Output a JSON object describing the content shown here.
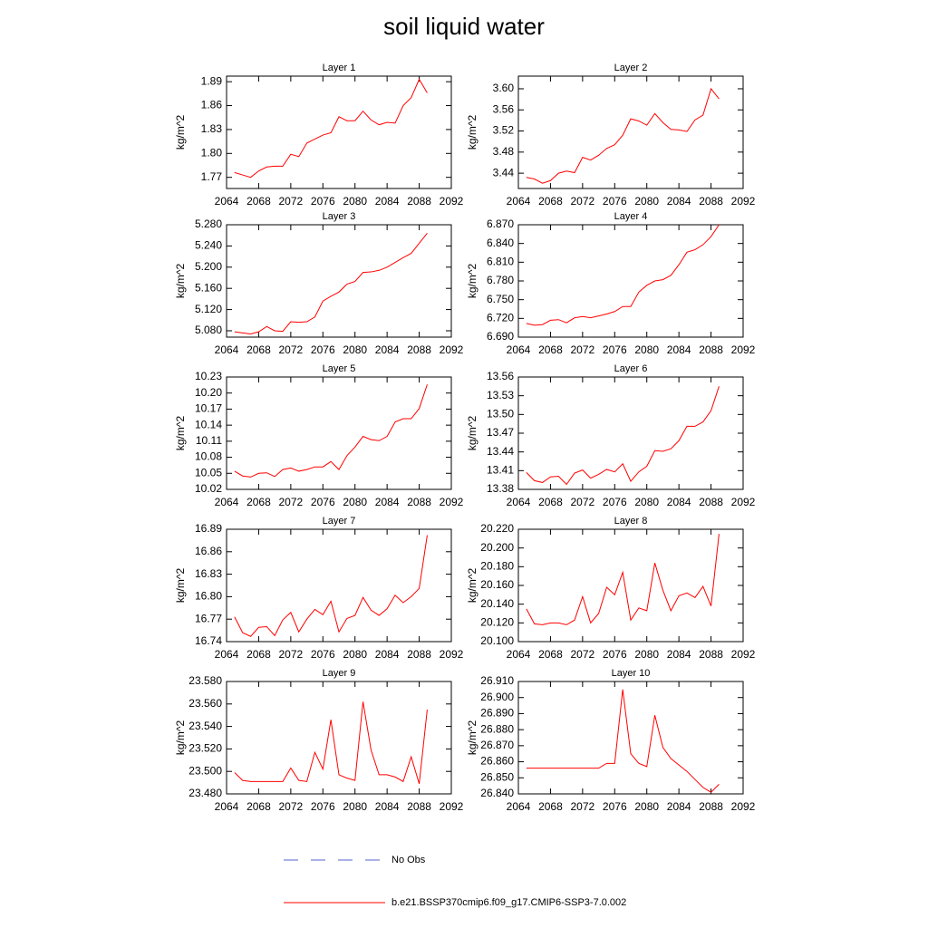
{
  "figure": {
    "title": "soil liquid water",
    "legend": [
      {
        "name": "No Obs",
        "color": "#5566cc",
        "dash": true
      },
      {
        "name": "b.e21.BSSP370cmip6.f09_g17.CMIP6-SSP3-7.0.002",
        "color": "#ff0000",
        "dash": false
      }
    ]
  },
  "chart_data": [
    {
      "type": "line",
      "title": "Layer 1",
      "ylabel": "kg/m^2",
      "color": "#ff0000",
      "x": [
        2065,
        2066,
        2067,
        2068,
        2069,
        2070,
        2071,
        2072,
        2073,
        2074,
        2075,
        2076,
        2077,
        2078,
        2079,
        2080,
        2081,
        2082,
        2083,
        2084,
        2085,
        2086,
        2087,
        2088,
        2089
      ],
      "values": [
        1.776,
        1.773,
        1.77,
        1.778,
        1.783,
        1.784,
        1.784,
        1.799,
        1.796,
        1.813,
        1.818,
        1.823,
        1.826,
        1.846,
        1.841,
        1.841,
        1.853,
        1.842,
        1.836,
        1.839,
        1.838,
        1.86,
        1.87,
        1.893,
        1.876
      ],
      "xlim": [
        2064,
        2092
      ],
      "xticks": [
        2064,
        2068,
        2072,
        2076,
        2080,
        2084,
        2088,
        2092
      ],
      "ylim": [
        1.756,
        1.897
      ],
      "yticks": [
        1.77,
        {
          "value": 1.8,
          "label": "1.80"
        },
        1.83,
        1.86,
        1.89
      ]
    },
    {
      "type": "line",
      "title": "Layer 2",
      "ylabel": "kg/m^2",
      "color": "#ff0000",
      "x": [
        2065,
        2066,
        2067,
        2068,
        2069,
        2070,
        2071,
        2072,
        2073,
        2074,
        2075,
        2076,
        2077,
        2078,
        2079,
        2080,
        2081,
        2082,
        2083,
        2084,
        2085,
        2086,
        2087,
        2088,
        2089
      ],
      "values": [
        3.432,
        3.429,
        3.421,
        3.426,
        3.44,
        3.444,
        3.441,
        3.47,
        3.465,
        3.474,
        3.487,
        3.494,
        3.512,
        3.543,
        3.539,
        3.531,
        3.553,
        3.536,
        3.523,
        3.522,
        3.519,
        3.541,
        3.55,
        3.6,
        3.581
      ],
      "xlim": [
        2064,
        2092
      ],
      "xticks": [
        2064,
        2068,
        2072,
        2076,
        2080,
        2084,
        2088,
        2092
      ],
      "ylim": [
        3.411,
        3.624
      ],
      "yticks": [
        3.44,
        3.48,
        3.52,
        3.56,
        {
          "value": 3.6,
          "label": "3.60"
        }
      ]
    },
    {
      "type": "line",
      "title": "Layer 3",
      "ylabel": "kg/m^2",
      "color": "#ff0000",
      "x": [
        2065,
        2066,
        2067,
        2068,
        2069,
        2070,
        2071,
        2072,
        2073,
        2074,
        2075,
        2076,
        2077,
        2078,
        2079,
        2080,
        2081,
        2082,
        2083,
        2084,
        2085,
        2086,
        2087,
        2088,
        2089
      ],
      "values": [
        5.078,
        5.076,
        5.074,
        5.078,
        5.088,
        5.08,
        5.079,
        5.097,
        5.096,
        5.097,
        5.106,
        5.136,
        5.145,
        5.153,
        5.168,
        5.173,
        5.19,
        5.191,
        5.194,
        5.2,
        5.209,
        5.218,
        5.226,
        5.245,
        5.264
      ],
      "xlim": [
        2064,
        2092
      ],
      "xticks": [
        2064,
        2068,
        2072,
        2076,
        2080,
        2084,
        2088,
        2092
      ],
      "ylim": [
        5.068,
        5.28
      ],
      "yticks": [
        {
          "value": 5.08,
          "label": "5.080"
        },
        {
          "value": 5.12,
          "label": "5.120"
        },
        {
          "value": 5.16,
          "label": "5.160"
        },
        {
          "value": 5.2,
          "label": "5.200"
        },
        {
          "value": 5.24,
          "label": "5.240"
        },
        {
          "value": 5.28,
          "label": "5.280"
        }
      ]
    },
    {
      "type": "line",
      "title": "Layer 4",
      "ylabel": "kg/m^2",
      "color": "#ff0000",
      "x": [
        2065,
        2066,
        2067,
        2068,
        2069,
        2070,
        2071,
        2072,
        2073,
        2074,
        2075,
        2076,
        2077,
        2078,
        2079,
        2080,
        2081,
        2082,
        2083,
        2084,
        2085,
        2086,
        2087,
        2088,
        2089
      ],
      "values": [
        6.712,
        6.709,
        6.71,
        6.717,
        6.718,
        6.713,
        6.721,
        6.723,
        6.721,
        6.724,
        6.727,
        6.731,
        6.739,
        6.739,
        6.762,
        6.773,
        6.78,
        6.782,
        6.789,
        6.806,
        6.826,
        6.83,
        6.838,
        6.851,
        6.87
      ],
      "xlim": [
        2064,
        2092
      ],
      "xticks": [
        2064,
        2068,
        2072,
        2076,
        2080,
        2084,
        2088,
        2092
      ],
      "ylim": [
        6.69,
        6.87
      ],
      "yticks": [
        {
          "value": 6.69,
          "label": "6.690"
        },
        {
          "value": 6.72,
          "label": "6.720"
        },
        {
          "value": 6.75,
          "label": "6.750"
        },
        {
          "value": 6.78,
          "label": "6.780"
        },
        {
          "value": 6.81,
          "label": "6.810"
        },
        {
          "value": 6.84,
          "label": "6.840"
        },
        {
          "value": 6.87,
          "label": "6.870"
        }
      ]
    },
    {
      "type": "line",
      "title": "Layer 5",
      "ylabel": "kg/m^2",
      "color": "#ff0000",
      "x": [
        2065,
        2066,
        2067,
        2068,
        2069,
        2070,
        2071,
        2072,
        2073,
        2074,
        2075,
        2076,
        2077,
        2078,
        2079,
        2080,
        2081,
        2082,
        2083,
        2084,
        2085,
        2086,
        2087,
        2088,
        2089
      ],
      "values": [
        10.054,
        10.045,
        10.043,
        10.05,
        10.051,
        10.044,
        10.057,
        10.06,
        10.054,
        10.057,
        10.062,
        10.062,
        10.072,
        10.057,
        10.083,
        10.099,
        10.119,
        10.113,
        10.111,
        10.119,
        10.146,
        10.152,
        10.152,
        10.171,
        10.216
      ],
      "xlim": [
        2064,
        2092
      ],
      "xticks": [
        2064,
        2068,
        2072,
        2076,
        2080,
        2084,
        2088,
        2092
      ],
      "ylim": [
        10.02,
        10.23
      ],
      "yticks": [
        10.02,
        10.05,
        10.08,
        10.11,
        10.14,
        10.17,
        {
          "value": 10.2,
          "label": "10.20"
        },
        10.23
      ]
    },
    {
      "type": "line",
      "title": "Layer 6",
      "ylabel": "kg/m^2",
      "color": "#ff0000",
      "x": [
        2065,
        2066,
        2067,
        2068,
        2069,
        2070,
        2071,
        2072,
        2073,
        2074,
        2075,
        2076,
        2077,
        2078,
        2079,
        2080,
        2081,
        2082,
        2083,
        2084,
        2085,
        2086,
        2087,
        2088,
        2089
      ],
      "values": [
        13.407,
        13.394,
        13.391,
        13.4,
        13.401,
        13.388,
        13.406,
        13.411,
        13.398,
        13.404,
        13.412,
        13.408,
        13.421,
        13.393,
        13.408,
        13.417,
        13.442,
        13.441,
        13.445,
        13.458,
        13.481,
        13.481,
        13.488,
        13.506,
        13.545
      ],
      "xlim": [
        2064,
        2092
      ],
      "xticks": [
        2064,
        2068,
        2072,
        2076,
        2080,
        2084,
        2088,
        2092
      ],
      "ylim": [
        13.38,
        13.56
      ],
      "yticks": [
        13.38,
        13.41,
        13.44,
        13.47,
        {
          "value": 13.5,
          "label": "13.50"
        },
        13.53,
        13.56
      ]
    },
    {
      "type": "line",
      "title": "Layer 7",
      "ylabel": "kg/m^2",
      "color": "#ff0000",
      "x": [
        2065,
        2066,
        2067,
        2068,
        2069,
        2070,
        2071,
        2072,
        2073,
        2074,
        2075,
        2076,
        2077,
        2078,
        2079,
        2080,
        2081,
        2082,
        2083,
        2084,
        2085,
        2086,
        2087,
        2088,
        2089
      ],
      "values": [
        16.773,
        16.752,
        16.747,
        16.759,
        16.76,
        16.748,
        16.769,
        16.779,
        16.753,
        16.77,
        16.783,
        16.776,
        16.794,
        16.753,
        16.771,
        16.775,
        16.799,
        16.782,
        16.775,
        16.784,
        16.802,
        16.792,
        16.8,
        16.811,
        16.882
      ],
      "xlim": [
        2064,
        2092
      ],
      "xticks": [
        2064,
        2068,
        2072,
        2076,
        2080,
        2084,
        2088,
        2092
      ],
      "ylim": [
        16.74,
        16.89
      ],
      "yticks": [
        16.74,
        16.77,
        {
          "value": 16.8,
          "label": "16.80"
        },
        16.83,
        16.86,
        16.89
      ]
    },
    {
      "type": "line",
      "title": "Layer 8",
      "ylabel": "kg/m^2",
      "color": "#ff0000",
      "x": [
        2065,
        2066,
        2067,
        2068,
        2069,
        2070,
        2071,
        2072,
        2073,
        2074,
        2075,
        2076,
        2077,
        2078,
        2079,
        2080,
        2081,
        2082,
        2083,
        2084,
        2085,
        2086,
        2087,
        2088,
        2089
      ],
      "values": [
        20.135,
        20.119,
        20.118,
        20.12,
        20.12,
        20.118,
        20.123,
        20.148,
        20.12,
        20.13,
        20.158,
        20.15,
        20.174,
        20.123,
        20.136,
        20.133,
        20.184,
        20.155,
        20.133,
        20.149,
        20.152,
        20.147,
        20.159,
        20.138,
        20.215
      ],
      "xlim": [
        2064,
        2092
      ],
      "xticks": [
        2064,
        2068,
        2072,
        2076,
        2080,
        2084,
        2088,
        2092
      ],
      "ylim": [
        20.1,
        20.22
      ],
      "yticks": [
        {
          "value": 20.1,
          "label": "20.100"
        },
        {
          "value": 20.12,
          "label": "20.120"
        },
        {
          "value": 20.14,
          "label": "20.140"
        },
        {
          "value": 20.16,
          "label": "20.160"
        },
        {
          "value": 20.18,
          "label": "20.180"
        },
        {
          "value": 20.2,
          "label": "20.200"
        },
        {
          "value": 20.22,
          "label": "20.220"
        }
      ]
    },
    {
      "type": "line",
      "title": "Layer 9",
      "ylabel": "kg/m^2",
      "color": "#ff0000",
      "x": [
        2065,
        2066,
        2067,
        2068,
        2069,
        2070,
        2071,
        2072,
        2073,
        2074,
        2075,
        2076,
        2077,
        2078,
        2079,
        2080,
        2081,
        2082,
        2083,
        2084,
        2085,
        2086,
        2087,
        2088,
        2089
      ],
      "values": [
        23.499,
        23.492,
        23.491,
        23.491,
        23.491,
        23.491,
        23.491,
        23.503,
        23.492,
        23.491,
        23.517,
        23.502,
        23.546,
        23.497,
        23.494,
        23.492,
        23.562,
        23.519,
        23.497,
        23.497,
        23.495,
        23.491,
        23.513,
        23.489,
        23.555
      ],
      "xlim": [
        2064,
        2092
      ],
      "xticks": [
        2064,
        2068,
        2072,
        2076,
        2080,
        2084,
        2088,
        2092
      ],
      "ylim": [
        23.48,
        23.58
      ],
      "yticks": [
        {
          "value": 23.48,
          "label": "23.480"
        },
        {
          "value": 23.5,
          "label": "23.500"
        },
        {
          "value": 23.52,
          "label": "23.520"
        },
        {
          "value": 23.54,
          "label": "23.540"
        },
        {
          "value": 23.56,
          "label": "23.560"
        },
        {
          "value": 23.58,
          "label": "23.580"
        }
      ]
    },
    {
      "type": "line",
      "title": "Layer 10",
      "ylabel": "kg/m^2",
      "color": "#ff0000",
      "x": [
        2065,
        2066,
        2067,
        2068,
        2069,
        2070,
        2071,
        2072,
        2073,
        2074,
        2075,
        2076,
        2077,
        2078,
        2079,
        2080,
        2081,
        2082,
        2083,
        2084,
        2085,
        2086,
        2087,
        2088,
        2089
      ],
      "values": [
        26.856,
        26.856,
        26.856,
        26.856,
        26.856,
        26.856,
        26.856,
        26.856,
        26.856,
        26.856,
        26.859,
        26.859,
        26.905,
        26.865,
        26.859,
        26.857,
        26.889,
        26.869,
        26.862,
        26.858,
        26.854,
        26.849,
        26.844,
        26.841,
        26.846
      ],
      "xlim": [
        2064,
        2092
      ],
      "xticks": [
        2064,
        2068,
        2072,
        2076,
        2080,
        2084,
        2088,
        2092
      ],
      "ylim": [
        26.84,
        26.91
      ],
      "yticks": [
        {
          "value": 26.84,
          "label": "26.840"
        },
        {
          "value": 26.85,
          "label": "26.850"
        },
        {
          "value": 26.86,
          "label": "26.860"
        },
        {
          "value": 26.87,
          "label": "26.870"
        },
        {
          "value": 26.88,
          "label": "26.880"
        },
        {
          "value": 26.89,
          "label": "26.890"
        },
        {
          "value": 26.9,
          "label": "26.900"
        },
        {
          "value": 26.91,
          "label": "26.910"
        }
      ]
    }
  ]
}
